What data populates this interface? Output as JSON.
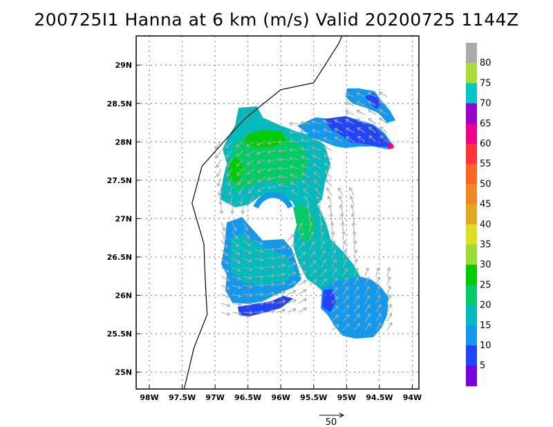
{
  "title": "200725I1 Hanna at 6 km (m/s) Valid 20200725 1144Z",
  "map": {
    "lat_labels": [
      {
        "lat": 29.0,
        "text": "29N"
      },
      {
        "lat": 28.5,
        "text": "28.5N"
      },
      {
        "lat": 28.0,
        "text": "28N"
      },
      {
        "lat": 27.5,
        "text": "27.5N"
      },
      {
        "lat": 27.0,
        "text": "27N"
      },
      {
        "lat": 26.5,
        "text": "26.5N"
      },
      {
        "lat": 26.0,
        "text": "26N"
      },
      {
        "lat": 25.5,
        "text": "25.5N"
      },
      {
        "lat": 25.0,
        "text": "25N"
      }
    ],
    "lon_labels": [
      {
        "lon": -98.0,
        "text": "98W"
      },
      {
        "lon": -97.5,
        "text": "97.5W"
      },
      {
        "lon": -97.0,
        "text": "97W"
      },
      {
        "lon": -96.5,
        "text": "96.5W"
      },
      {
        "lon": -96.0,
        "text": "96W"
      },
      {
        "lon": -95.5,
        "text": "95.5W"
      },
      {
        "lon": -95.0,
        "text": "95W"
      },
      {
        "lon": -94.5,
        "text": "94.5W"
      },
      {
        "lon": -94.0,
        "text": "94W"
      }
    ],
    "extent": {
      "lon_min": -98.2,
      "lon_max": -93.9,
      "lat_min": 24.78,
      "lat_max": 29.38
    },
    "storm_center": {
      "lon": -96.1,
      "lat": 27.05
    },
    "coastline": [
      [
        -95.07,
        29.38
      ],
      [
        -95.12,
        29.28
      ],
      [
        -95.5,
        28.77
      ],
      [
        -96.0,
        28.68
      ],
      [
        -96.55,
        28.3
      ],
      [
        -96.85,
        28.02
      ],
      [
        -97.2,
        27.68
      ],
      [
        -97.35,
        27.2
      ],
      [
        -97.17,
        26.67
      ],
      [
        -97.15,
        26.2
      ],
      [
        -97.12,
        25.75
      ],
      [
        -97.32,
        25.32
      ],
      [
        -97.47,
        24.78
      ]
    ],
    "reference_vector_label": "50",
    "reference_vector_speed": 50
  },
  "colorbar": {
    "top_color": "#aaaaaa",
    "levels": [
      {
        "label": "80",
        "color": "#aadd33"
      },
      {
        "label": "75",
        "color": "#00c8c8"
      },
      {
        "label": "70",
        "color": "#9900cc"
      },
      {
        "label": "65",
        "color": "#ee0088"
      },
      {
        "label": "60",
        "color": "#ff3333"
      },
      {
        "label": "55",
        "color": "#ff6622"
      },
      {
        "label": "50",
        "color": "#ee8822"
      },
      {
        "label": "45",
        "color": "#ddaa22"
      },
      {
        "label": "40",
        "color": "#dddd22"
      },
      {
        "label": "35",
        "color": "#99dd33"
      },
      {
        "label": "30",
        "color": "#00cc00"
      },
      {
        "label": "25",
        "color": "#00cc66"
      },
      {
        "label": "20",
        "color": "#00bbbb"
      },
      {
        "label": "15",
        "color": "#1199ee"
      },
      {
        "label": "10",
        "color": "#2244ff"
      },
      {
        "label": "5",
        "color": "#7700dd"
      }
    ],
    "bottom_color": "#aa00cc"
  },
  "colors": {
    "speed_15_20": "#1199ee",
    "speed_20_25": "#00bbbb",
    "speed_25_30": "#00cc66",
    "speed_30_35": "#00cc00",
    "speed_10_15": "#2244ff",
    "speed_5_10": "#7700dd",
    "speed_65_70": "#ee0088",
    "wind_arrow": "#aaaaaa",
    "grid": "#888888",
    "coastline": "#000000"
  }
}
